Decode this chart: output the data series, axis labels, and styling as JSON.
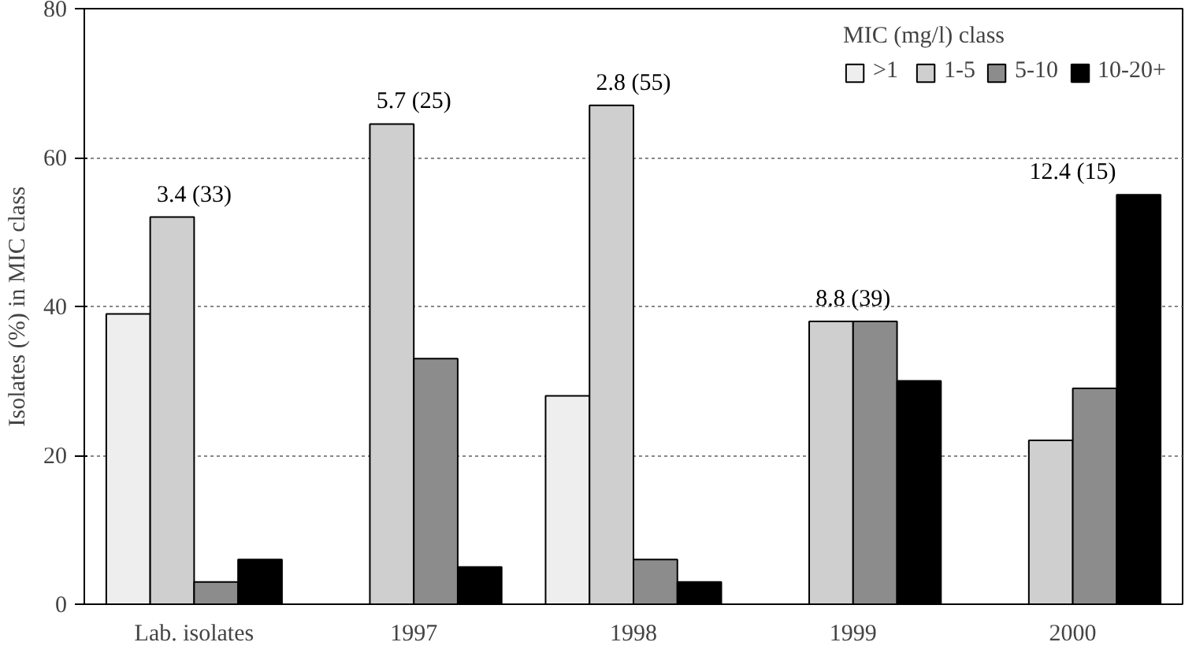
{
  "chart_data": {
    "type": "bar",
    "ylabel": "Isolates (%) in MIC class",
    "legend_title": "MIC (mg/l) class",
    "categories": [
      "Lab. isolates",
      "1997",
      "1998",
      "1999",
      "2000"
    ],
    "series": [
      {
        "name": ">1",
        "color": "#eeeeee",
        "values": [
          39,
          null,
          28,
          null,
          null
        ]
      },
      {
        "name": "1-5",
        "color": "#cfcfcf",
        "values": [
          52,
          64.5,
          67,
          38,
          22
        ]
      },
      {
        "name": "5-10",
        "color": "#8c8c8c",
        "values": [
          3,
          33,
          6,
          38,
          29
        ]
      },
      {
        "name": "10-20+",
        "color": "#000000",
        "values": [
          6,
          5,
          3,
          30,
          55
        ]
      }
    ],
    "ylim": [
      0,
      80
    ],
    "yticks": [
      0,
      20,
      40,
      60,
      80
    ],
    "grid": "y",
    "legend": "top right",
    "annotations": [
      "3.4 (33)",
      "5.7 (25)",
      "2.8 (55)",
      "8.8 (39)",
      "12.4 (15)"
    ]
  }
}
